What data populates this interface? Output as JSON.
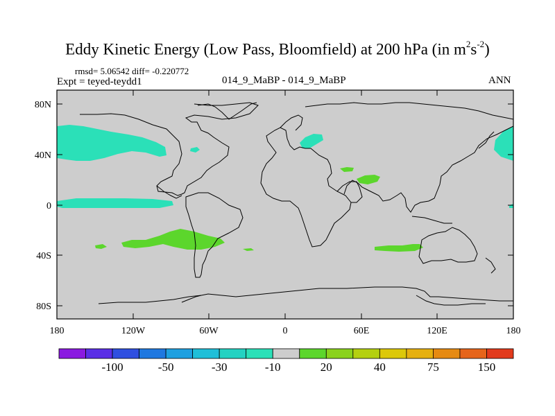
{
  "title": {
    "main": "Eddy Kinetic Energy (Low Pass, Bloomfield) at 200 hPa (in m",
    "exp1": "2",
    "mid": "s",
    "exp2": "-2",
    "close": ")"
  },
  "stats": "rmsd= 5.06542 diff= -0.220772",
  "expt": "Expt = teyed-teydd1",
  "diff_name": "014_9_MaBP - 014_9_MaBP",
  "season": "ANN",
  "lat_ticks": [
    "80N",
    "40N",
    "0",
    "40S",
    "80S"
  ],
  "lon_ticks": [
    "180",
    "120W",
    "60W",
    "0",
    "60E",
    "120E",
    "180"
  ],
  "colorbar": {
    "colors": [
      "#8a19e0",
      "#5a2ee6",
      "#2f4fe0",
      "#1f78e0",
      "#1ea0e0",
      "#1fbfd8",
      "#24d2c2",
      "#2be0b8",
      "#cdcdcd",
      "#5cd62c",
      "#8ad21c",
      "#b4d010",
      "#dcc80a",
      "#e6b010",
      "#e68a12",
      "#e6641a",
      "#e23a1c"
    ],
    "labels": [
      "-100",
      "-50",
      "-30",
      "-10",
      "20",
      "40",
      "75",
      "150"
    ]
  },
  "palette": {
    "negative_fill": "#2be0b8",
    "positive_fill": "#5cd62c",
    "land_ocean": "#cdcdcd"
  }
}
